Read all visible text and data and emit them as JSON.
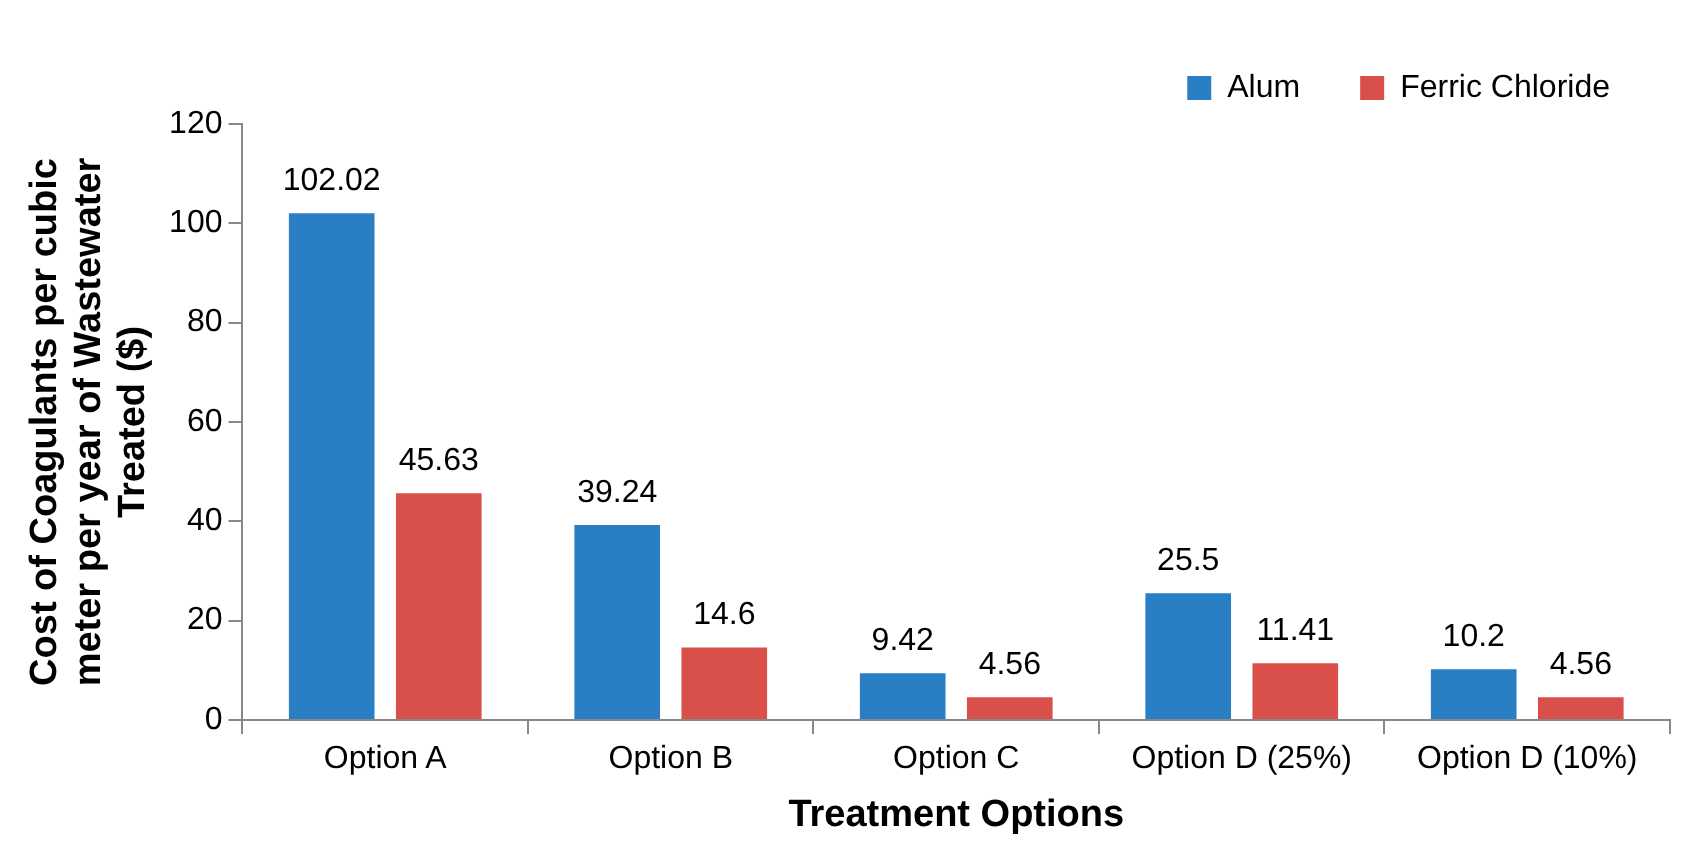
{
  "chart_data": {
    "type": "bar",
    "xlabel": "Treatment Options",
    "ylabel": "Cost of Coagulants per cubic meter per year of Wastewater Treated ($)",
    "categories": [
      "Option A",
      "Option B",
      "Option C",
      "Option D (25%)",
      "Option D (10%)"
    ],
    "series": [
      {
        "name": "Alum",
        "color": "#2a7fc4",
        "values": [
          102.02,
          39.24,
          9.42,
          25.5,
          10.2
        ]
      },
      {
        "name": "Ferric Chloride",
        "color": "#d9504a",
        "values": [
          45.63,
          14.6,
          4.56,
          11.41,
          4.56
        ]
      }
    ],
    "ylim": [
      0,
      120
    ],
    "yticks": [
      0,
      20,
      40,
      60,
      80,
      100,
      120
    ],
    "grid": false,
    "legend": "top right",
    "data_labels": true
  }
}
